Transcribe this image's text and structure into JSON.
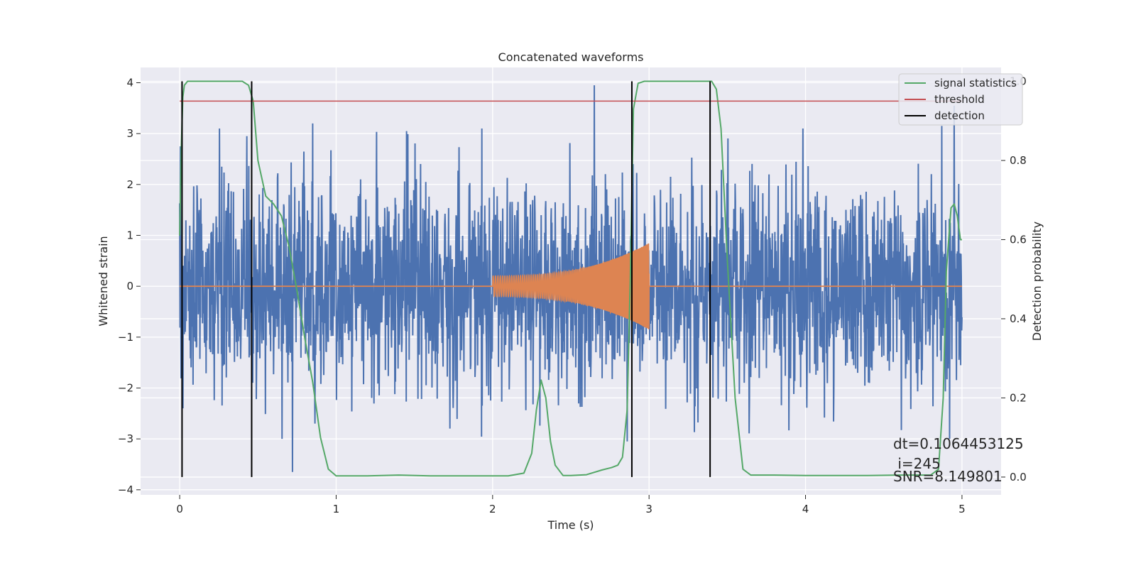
{
  "chart_data": {
    "type": "line",
    "title": "Concatenated waveforms",
    "xlabel": "Time (s)",
    "ylabel": "Whitened strain",
    "y2label": "Detection probability",
    "xlim": [
      -0.25,
      5.25
    ],
    "ylim": [
      -4.1,
      4.3
    ],
    "y2lim": [
      -0.045,
      1.035
    ],
    "x_ticks": [
      0,
      1,
      2,
      3,
      4,
      5
    ],
    "y_ticks": [
      -4,
      -3,
      -2,
      -1,
      0,
      1,
      2,
      3,
      4
    ],
    "y2_ticks": [
      0.0,
      0.2,
      0.4,
      0.6,
      0.8,
      1.0
    ],
    "x_tick_labels": [
      "0",
      "1",
      "2",
      "3",
      "4",
      "5"
    ],
    "y_tick_labels": [
      "−4",
      "−3",
      "−2",
      "−1",
      "0",
      "1",
      "2",
      "3",
      "4"
    ],
    "y2_tick_labels": [
      "0.0",
      "0.2",
      "0.4",
      "0.6",
      "0.8",
      "1.0"
    ],
    "grid": true,
    "legend_position": "top-right",
    "colors": {
      "background": "#eaeaf2",
      "strain": "#4c72b0",
      "injected_waveform": "#dd8452",
      "signal_statistics": "#55a868",
      "threshold": "#c44e52",
      "detection": "#000000",
      "grid": "#ffffff",
      "text": "#262626"
    },
    "series": [
      {
        "name": "",
        "kind": "noise",
        "description_axis": "left",
        "x_range": [
          0,
          5
        ],
        "y_range": [
          -3.7,
          3.95
        ],
        "typical_amplitude": 1.0,
        "peaks": [
          {
            "x": 0.005,
            "y": 2.75
          },
          {
            "x": 0.02,
            "y": -2.4
          },
          {
            "x": 0.43,
            "y": 2.95
          },
          {
            "x": 0.72,
            "y": -3.65
          },
          {
            "x": 0.85,
            "y": 3.2
          },
          {
            "x": 1.45,
            "y": 3.05
          },
          {
            "x": 2.65,
            "y": 3.95
          },
          {
            "x": 2.86,
            "y": -3.05
          },
          {
            "x": 4.87,
            "y": 3.15
          },
          {
            "x": 4.95,
            "y": 3.55
          },
          {
            "x": 4.92,
            "y": -3.0
          }
        ]
      },
      {
        "name": "",
        "kind": "chirp",
        "axis": "left",
        "flat_ranges": [
          [
            0,
            2.0
          ],
          [
            3.0,
            5.0
          ]
        ],
        "chirp_start": 2.0,
        "chirp_end": 3.0,
        "amplitude_start": 0.2,
        "amplitude_end": 0.85
      },
      {
        "name": "signal statistics",
        "axis": "right",
        "x": [
          0.0,
          0.01,
          0.02,
          0.03,
          0.05,
          0.08,
          0.12,
          0.2,
          0.3,
          0.4,
          0.44,
          0.47,
          0.5,
          0.55,
          0.6,
          0.65,
          0.7,
          0.75,
          0.8,
          0.85,
          0.9,
          0.95,
          1.0,
          1.2,
          1.4,
          1.6,
          1.8,
          2.0,
          2.1,
          2.2,
          2.25,
          2.28,
          2.31,
          2.34,
          2.37,
          2.4,
          2.45,
          2.5,
          2.6,
          2.7,
          2.76,
          2.8,
          2.83,
          2.86,
          2.88,
          2.9,
          2.93,
          2.97,
          3.05,
          3.2,
          3.35,
          3.4,
          3.43,
          3.46,
          3.5,
          3.55,
          3.6,
          3.65,
          3.8,
          4.0,
          4.2,
          4.4,
          4.6,
          4.8,
          4.85,
          4.88,
          4.9,
          4.93,
          4.95,
          4.97,
          4.99,
          5.0
        ],
        "values": [
          0.61,
          0.83,
          0.96,
          0.99,
          1.0,
          1.0,
          1.0,
          1.0,
          1.0,
          1.0,
          0.99,
          0.95,
          0.8,
          0.71,
          0.69,
          0.66,
          0.58,
          0.47,
          0.35,
          0.24,
          0.1,
          0.02,
          0.003,
          0.003,
          0.005,
          0.003,
          0.003,
          0.003,
          0.003,
          0.01,
          0.06,
          0.17,
          0.245,
          0.2,
          0.09,
          0.03,
          0.004,
          0.004,
          0.006,
          0.018,
          0.024,
          0.03,
          0.05,
          0.17,
          0.5,
          0.93,
          0.995,
          1.0,
          1.0,
          1.0,
          1.0,
          1.0,
          0.98,
          0.88,
          0.55,
          0.2,
          0.02,
          0.005,
          0.005,
          0.004,
          0.004,
          0.004,
          0.005,
          0.005,
          0.02,
          0.2,
          0.52,
          0.68,
          0.69,
          0.66,
          0.6,
          0.6
        ]
      },
      {
        "name": "threshold",
        "axis": "right",
        "x": [
          0,
          5
        ],
        "values": [
          0.95,
          0.95
        ]
      },
      {
        "name": "detection",
        "axis": "right",
        "kind": "vlines",
        "x": [
          0.015,
          0.46,
          2.89,
          3.39
        ],
        "ymin": 0.0,
        "ymax": 1.0
      }
    ],
    "legend": [
      "signal statistics",
      "threshold",
      "detection"
    ],
    "annotations": [
      "dt=0.1064453125",
      " i=245",
      "SNR=8.149801"
    ]
  }
}
